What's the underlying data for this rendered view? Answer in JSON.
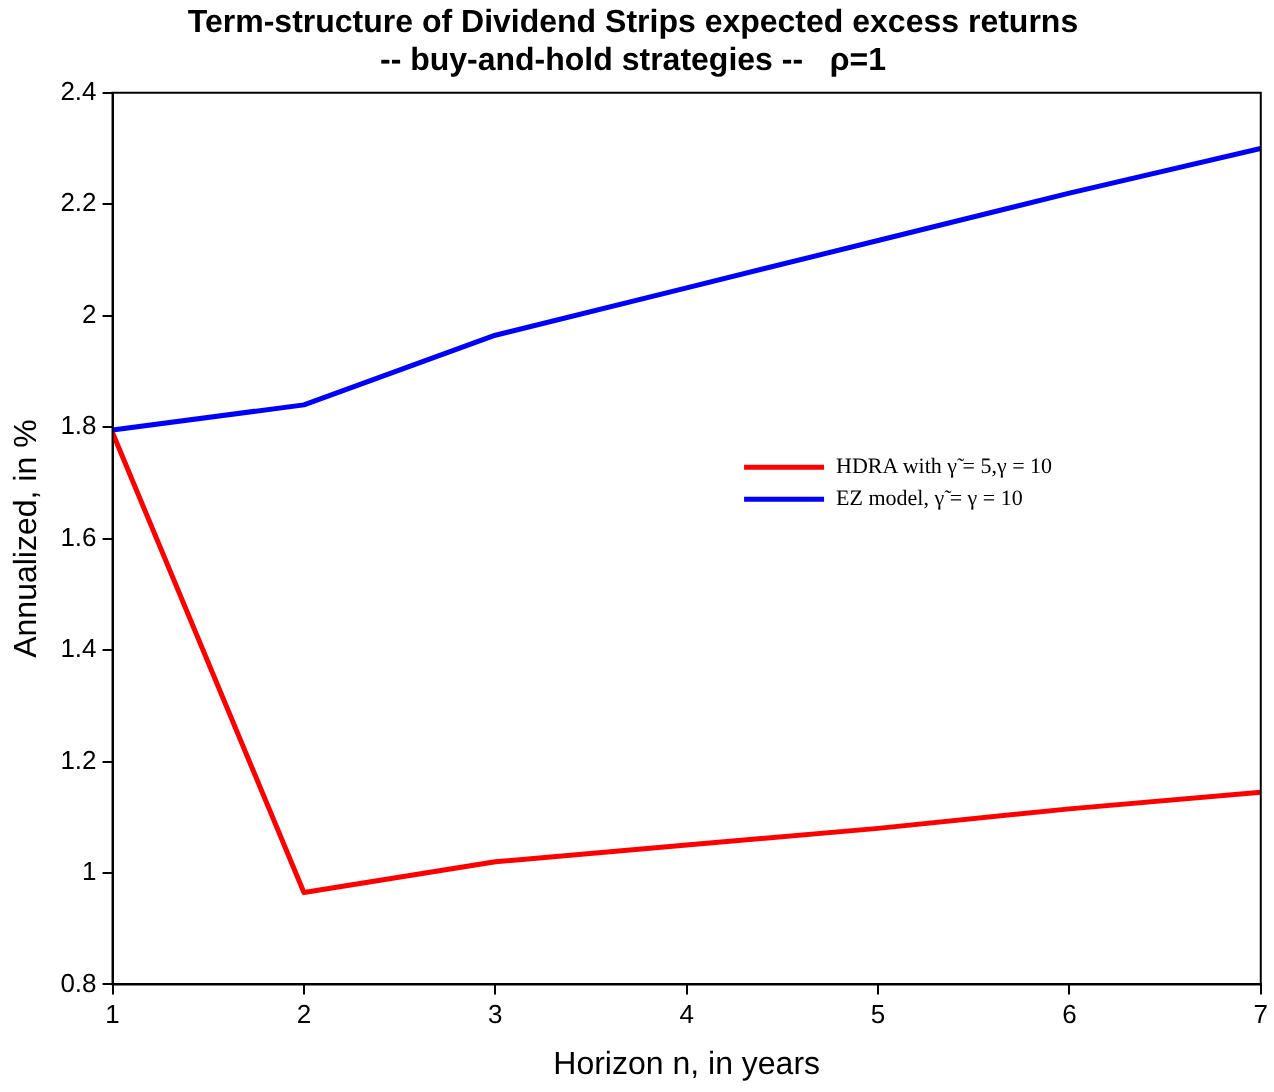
{
  "chart_data": {
    "type": "line",
    "title": "Term-structure of Dividend Strips expected excess returns\n-- buy-and-hold strategies --   ρ=1",
    "xlabel": "Horizon n, in years",
    "ylabel": "Annualized, in %",
    "x": [
      1,
      2,
      3,
      4,
      5,
      6,
      7
    ],
    "series": [
      {
        "name": "HDRA with γ̃ = 5,γ = 10",
        "color": "#ff0000",
        "values": [
          1.79,
          0.965,
          1.02,
          1.05,
          1.08,
          1.115,
          1.145
        ]
      },
      {
        "name": "EZ model, γ̃ = γ = 10",
        "color": "#0000ff",
        "values": [
          1.795,
          1.84,
          1.965,
          2.05,
          2.135,
          2.22,
          2.3
        ]
      }
    ],
    "xlim": [
      1,
      7
    ],
    "xticks": [
      1,
      2,
      3,
      4,
      5,
      6,
      7
    ],
    "ylim": [
      0.8,
      2.4
    ],
    "yticks": [
      0.8,
      1,
      1.2,
      1.4,
      1.6,
      1.8,
      2,
      2.2,
      2.4
    ],
    "grid": false,
    "legend": "right",
    "marker": "none",
    "line_style": "solid"
  }
}
